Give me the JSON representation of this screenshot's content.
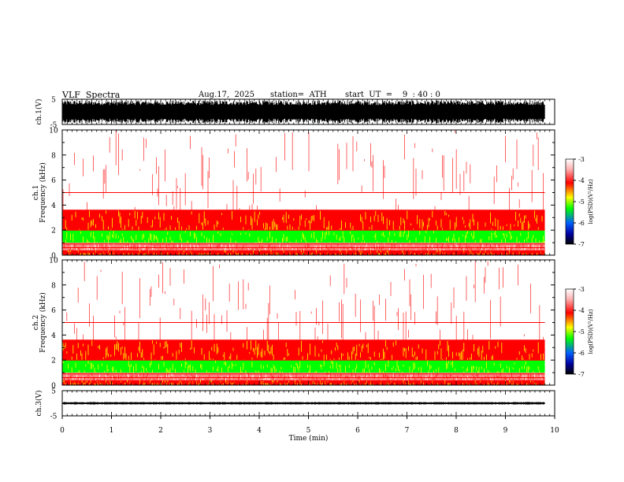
{
  "header": {
    "title": "VLF  Spectra",
    "date": "Aug.17,  2025",
    "station": "station=  ATH",
    "start": "start  UT  =    9  : 40 : 0"
  },
  "chart_data": {
    "type": "heatmap",
    "title": "VLF  Spectra",
    "xlabel": "Time  (min)",
    "xlim": [
      0,
      10
    ],
    "xticks": [
      "0",
      "1",
      "2",
      "3",
      "4",
      "5",
      "6",
      "7",
      "8",
      "9",
      "10"
    ],
    "data_end_min": 9.8,
    "panels": [
      {
        "name": "ch.1 waveform",
        "ylabel": "ch.1(V)",
        "ylim": [
          -5,
          5
        ],
        "yticks": [
          "5",
          "-5"
        ],
        "amplitude_V": 4.5
      },
      {
        "name": "ch.1 spectrogram",
        "ylabel": "ch.1\nFrequency  (kHz)",
        "ylim": [
          0,
          10
        ],
        "yticks": [
          "0",
          "2",
          "4",
          "6",
          "8",
          "10"
        ],
        "bands_kHz": [
          {
            "from": 0,
            "to": 0.4,
            "level": -4
          },
          {
            "from": 0.4,
            "to": 1.0,
            "level": -3.7
          },
          {
            "from": 1.0,
            "to": 2.0,
            "level": -5
          },
          {
            "from": 2.0,
            "to": 3.6,
            "level": -4.1
          },
          {
            "from": 3.6,
            "to": 10,
            "level": -3.3
          }
        ],
        "colorbar": {
          "label": "log(PSD)(V²/Hz)",
          "ticks": [
            "-3",
            "-4",
            "-5",
            "-6",
            "-7"
          ],
          "range": [
            -7,
            -3
          ]
        }
      },
      {
        "name": "ch.2 spectrogram",
        "ylabel": "ch.2\nFrequency  (kHz)",
        "ylim": [
          0,
          10
        ],
        "yticks": [
          "0",
          "2",
          "4",
          "6",
          "8",
          "10"
        ],
        "bands_kHz": [
          {
            "from": 0,
            "to": 0.4,
            "level": -4
          },
          {
            "from": 0.4,
            "to": 1.0,
            "level": -3.7
          },
          {
            "from": 1.0,
            "to": 2.0,
            "level": -5
          },
          {
            "from": 2.0,
            "to": 3.6,
            "level": -4.1
          },
          {
            "from": 3.6,
            "to": 10,
            "level": -3.3
          }
        ],
        "colorbar": {
          "label": "log(PSD)(V²/Hz)",
          "ticks": [
            "-3",
            "-4",
            "-5",
            "-6",
            "-7"
          ],
          "range": [
            -7,
            -3
          ]
        }
      },
      {
        "name": "ch.3 waveform",
        "ylabel": "ch.3(V)",
        "ylim": [
          -5,
          5
        ],
        "yticks": [
          "5",
          "-5"
        ],
        "amplitude_V": 0.5
      }
    ],
    "colors": {
      "high": "#ffffff",
      "red": "#ff0000",
      "yellow": "#ffff00",
      "green": "#00ff00",
      "blue": "#0000ff",
      "low": "#000000"
    }
  }
}
